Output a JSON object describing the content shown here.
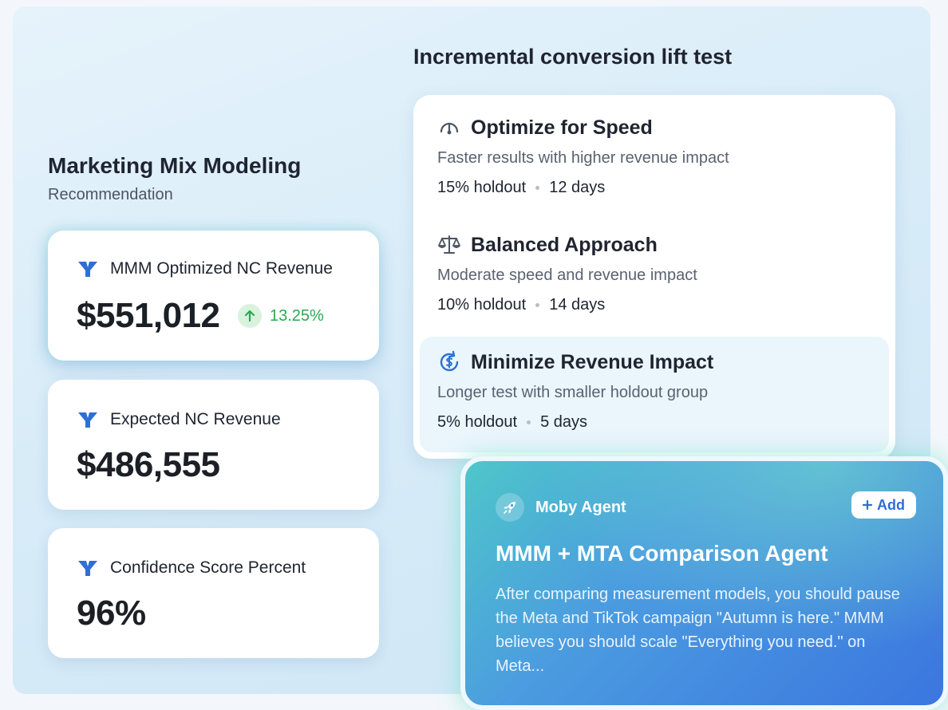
{
  "mmm": {
    "title": "Marketing Mix Modeling",
    "subtitle": "Recommendation",
    "metrics": [
      {
        "label": "MMM Optimized NC Revenue",
        "value": "$551,012",
        "change": "13.25%"
      },
      {
        "label": "Expected NC Revenue",
        "value": "$486,555"
      },
      {
        "label": "Confidence Score Percent",
        "value": "96%"
      }
    ],
    "icon": "brand-y-icon"
  },
  "lift_test": {
    "title": "Incremental conversion lift test",
    "options": [
      {
        "icon": "speedometer-icon",
        "title": "Optimize for Speed",
        "description": "Faster results with higher revenue impact",
        "holdout": "15% holdout",
        "duration": "12 days"
      },
      {
        "icon": "scale-icon",
        "title": "Balanced Approach",
        "description": "Moderate speed and revenue impact",
        "holdout": "10% holdout",
        "duration": "14 days"
      },
      {
        "icon": "dollar-refresh-icon",
        "title": "Minimize Revenue Impact",
        "description": "Longer test with smaller holdout group",
        "holdout": "5% holdout",
        "duration": "5 days",
        "selected": true
      }
    ]
  },
  "agent": {
    "name": "Moby Agent",
    "add_label": "Add",
    "title": "MMM + MTA Comparison Agent",
    "text": "After comparing measurement models, you should pause the Meta and TikTok campaign \"Autumn is here.\" MMM believes you should scale \"Everything you need.\" on Meta..."
  },
  "colors": {
    "brand_blue": "#2f6fd3",
    "positive_green": "#2ea84f",
    "agent_gradient_start": "#4ec7c9",
    "agent_gradient_end": "#3b76df"
  }
}
